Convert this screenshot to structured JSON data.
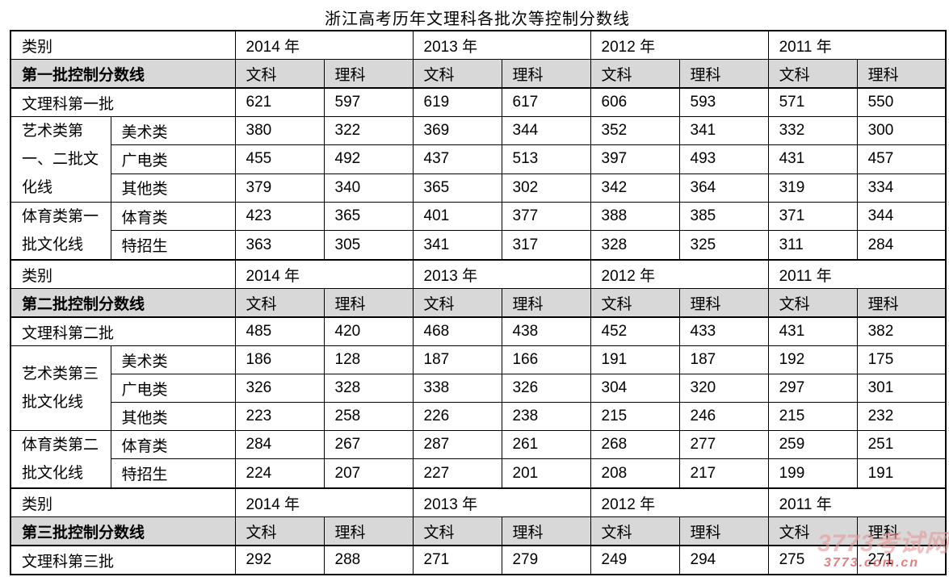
{
  "title": "浙江高考历年文理科各批次等控制分数线",
  "watermark": {
    "logo": "3773考试网",
    "domain": "3773.com.cn",
    "logo_color": "#e89a9a",
    "domain_color": "#dd5f5f"
  },
  "colors": {
    "header_band_gray": "#d8d8d8",
    "border": "#000000",
    "background": "#ffffff"
  },
  "table": {
    "category_label": "类别",
    "years": [
      "2014 年",
      "2013 年",
      "2012 年",
      "2011 年"
    ],
    "subjects": [
      "文科",
      "理科"
    ],
    "sections": [
      {
        "batch_header": "第一批控制分数线",
        "rows": [
          {
            "label": "文理科第一批",
            "label_align": "left",
            "values": [
              "621",
              "597",
              "619",
              "617",
              "606",
              "593",
              "571",
              "550"
            ]
          },
          {
            "group": "艺术类第一、二批文化线",
            "group_rowspan": 3,
            "sub": "美术类",
            "values": [
              "380",
              "322",
              "369",
              "344",
              "352",
              "341",
              "332",
              "300"
            ]
          },
          {
            "sub": "广电类",
            "values": [
              "455",
              "492",
              "437",
              "513",
              "397",
              "493",
              "431",
              "457"
            ]
          },
          {
            "sub": "其他类",
            "values": [
              "379",
              "340",
              "365",
              "302",
              "342",
              "364",
              "319",
              "334"
            ]
          },
          {
            "group": "体育类第一批文化线",
            "group_rowspan": 2,
            "sub": "体育类",
            "values": [
              "423",
              "365",
              "401",
              "377",
              "388",
              "385",
              "371",
              "344"
            ]
          },
          {
            "sub": "特招生",
            "values": [
              "363",
              "305",
              "341",
              "317",
              "328",
              "325",
              "311",
              "284"
            ]
          }
        ]
      },
      {
        "batch_header": "第二批控制分数线",
        "rows": [
          {
            "label": "文理科第二批",
            "label_align": "left",
            "values": [
              "485",
              "420",
              "468",
              "438",
              "452",
              "433",
              "431",
              "382"
            ]
          },
          {
            "group": "艺术类第三批文化线",
            "group_rowspan": 3,
            "sub": "美术类",
            "values": [
              "186",
              "128",
              "187",
              "166",
              "191",
              "187",
              "192",
              "175"
            ]
          },
          {
            "sub": "广电类",
            "values": [
              "326",
              "328",
              "338",
              "326",
              "304",
              "320",
              "297",
              "301"
            ]
          },
          {
            "sub": "其他类",
            "values": [
              "223",
              "258",
              "226",
              "238",
              "215",
              "246",
              "215",
              "232"
            ]
          },
          {
            "group": "体育类第二批文化线",
            "group_rowspan": 2,
            "sub": "体育类",
            "values": [
              "284",
              "267",
              "287",
              "261",
              "268",
              "277",
              "259",
              "251"
            ]
          },
          {
            "sub": "特招生",
            "values": [
              "224",
              "207",
              "227",
              "201",
              "208",
              "217",
              "199",
              "191"
            ]
          }
        ]
      },
      {
        "batch_header": "第三批控制分数线",
        "rows": [
          {
            "label": "文理科第三批",
            "label_align": "center",
            "values": [
              "292",
              "288",
              "271",
              "279",
              "249",
              "294",
              "275",
              "271"
            ]
          }
        ]
      }
    ]
  }
}
